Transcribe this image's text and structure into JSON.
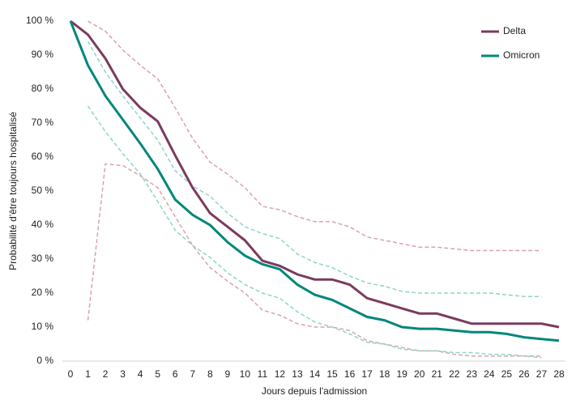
{
  "chart_data": {
    "type": "line",
    "y_label": "Probabilité d'être toujours hospitalisé",
    "x_label": "Jours depuis l'admission",
    "x": [
      0,
      1,
      2,
      3,
      4,
      5,
      6,
      7,
      8,
      9,
      10,
      11,
      12,
      13,
      14,
      15,
      16,
      17,
      18,
      19,
      20,
      21,
      22,
      23,
      24,
      25,
      26,
      27,
      28
    ],
    "series": [
      {
        "name": "Delta",
        "color": "#7b3b5e",
        "values": [
          100,
          96,
          89,
          80,
          74.5,
          70.5,
          60.5,
          51,
          43.5,
          39.5,
          35.5,
          29.5,
          28,
          25.5,
          24,
          24,
          22.5,
          18.5,
          17,
          15.5,
          14,
          14,
          12.5,
          11,
          11,
          11,
          11,
          11,
          10
        ]
      },
      {
        "name": "Omicron",
        "color": "#00877a",
        "values": [
          100,
          87,
          78,
          71,
          64,
          56.5,
          47.5,
          43,
          40,
          35,
          31,
          28.5,
          27,
          22.5,
          19.5,
          18,
          15.5,
          13,
          12,
          10,
          9.5,
          9.5,
          9,
          8.5,
          8.5,
          8,
          7,
          6.5,
          6
        ]
      }
    ],
    "bands": [
      {
        "color": "#d9a3a8",
        "values": [
          null,
          100,
          97,
          91.5,
          87,
          83,
          74.5,
          65.5,
          58.5,
          55,
          51,
          45.5,
          44.5,
          42.5,
          41,
          41,
          39.5,
          36.5,
          35.5,
          34.5,
          33.5,
          33.5,
          33,
          32.5,
          32.5,
          32.5,
          32.5,
          32.5,
          null
        ]
      },
      {
        "color": "#d9a3a8",
        "values": [
          null,
          12,
          58,
          57.5,
          54.5,
          51,
          42.5,
          34,
          27.5,
          23.5,
          20,
          15,
          13.5,
          11,
          10,
          10,
          9,
          6,
          5,
          4,
          3,
          3,
          2,
          1.5,
          1.5,
          1.5,
          1.5,
          1.5,
          null
        ]
      },
      {
        "color": "#8fd3cc",
        "values": [
          null,
          94,
          85,
          78,
          71.5,
          65,
          56,
          51.5,
          48.5,
          43.5,
          39.5,
          37.5,
          36,
          31.5,
          29,
          27.5,
          25,
          23,
          22,
          20.5,
          20,
          20,
          20,
          20,
          20,
          19.5,
          19,
          19,
          null
        ]
      },
      {
        "color": "#8fd3cc",
        "values": [
          null,
          75,
          67.5,
          61,
          55,
          47,
          38.5,
          34,
          30.5,
          26,
          22.5,
          20,
          18.5,
          14.5,
          11.5,
          10,
          8,
          5.5,
          5,
          3.5,
          3,
          3,
          2.5,
          2.5,
          2,
          2,
          1.5,
          1,
          null
        ]
      }
    ],
    "xlim": [
      0,
      28
    ],
    "ylim": [
      0,
      100
    ],
    "xticks": [
      0,
      1,
      2,
      3,
      4,
      5,
      6,
      7,
      8,
      9,
      10,
      11,
      12,
      13,
      14,
      15,
      16,
      17,
      18,
      19,
      20,
      21,
      22,
      23,
      24,
      25,
      26,
      27,
      28
    ],
    "yticks": [
      {
        "value": 0,
        "label": "0 %"
      },
      {
        "value": 10,
        "label": "10 %"
      },
      {
        "value": 20,
        "label": "20 %"
      },
      {
        "value": 30,
        "label": "30 %"
      },
      {
        "value": 40,
        "label": "40 %"
      },
      {
        "value": 50,
        "label": "50 %"
      },
      {
        "value": 60,
        "label": "60 %"
      },
      {
        "value": 70,
        "label": "70 %"
      },
      {
        "value": 80,
        "label": "80 %"
      },
      {
        "value": 90,
        "label": "90 %"
      },
      {
        "value": 100,
        "label": "100 %"
      }
    ],
    "legend": "top-right"
  }
}
